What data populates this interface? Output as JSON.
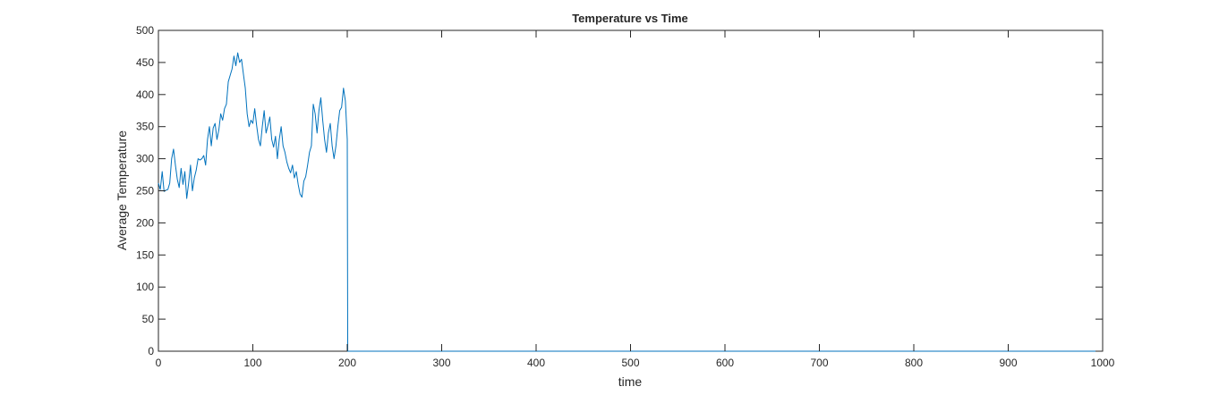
{
  "chart_data": {
    "type": "line",
    "title": "Temperature vs Time",
    "xlabel": "time",
    "ylabel": "Average Temperature",
    "xlim": [
      0,
      1000
    ],
    "ylim": [
      0,
      500
    ],
    "xticks": [
      0,
      100,
      200,
      300,
      400,
      500,
      600,
      700,
      800,
      900,
      1000
    ],
    "yticks": [
      0,
      50,
      100,
      150,
      200,
      250,
      300,
      350,
      400,
      450,
      500
    ],
    "grid": false,
    "legend": "none",
    "series": [
      {
        "color": "#0072bd",
        "x": [
          0,
          2,
          4,
          6,
          8,
          10,
          12,
          14,
          16,
          18,
          20,
          22,
          24,
          26,
          28,
          30,
          32,
          34,
          36,
          38,
          40,
          42,
          44,
          46,
          48,
          50,
          52,
          54,
          56,
          58,
          60,
          62,
          64,
          66,
          68,
          70,
          72,
          74,
          76,
          78,
          80,
          82,
          84,
          86,
          88,
          90,
          92,
          94,
          96,
          98,
          100,
          102,
          104,
          106,
          108,
          110,
          112,
          114,
          116,
          118,
          120,
          122,
          124,
          126,
          128,
          130,
          132,
          134,
          136,
          138,
          140,
          142,
          144,
          146,
          148,
          150,
          152,
          154,
          156,
          158,
          160,
          162,
          164,
          166,
          168,
          170,
          172,
          174,
          176,
          178,
          180,
          182,
          184,
          186,
          188,
          190,
          192,
          194,
          196,
          198,
          199,
          200,
          200.5,
          201,
          202,
          210,
          300,
          400,
          500,
          600,
          700,
          800,
          900,
          1000
        ],
        "y": [
          262,
          252,
          280,
          249,
          251,
          252,
          262,
          300,
          315,
          290,
          268,
          255,
          285,
          260,
          280,
          238,
          262,
          290,
          250,
          270,
          282,
          300,
          298,
          300,
          305,
          290,
          330,
          350,
          320,
          348,
          355,
          330,
          345,
          370,
          360,
          378,
          385,
          420,
          430,
          440,
          460,
          445,
          465,
          450,
          455,
          432,
          410,
          370,
          350,
          360,
          355,
          378,
          352,
          330,
          320,
          350,
          375,
          340,
          352,
          365,
          330,
          318,
          335,
          300,
          330,
          350,
          320,
          310,
          295,
          285,
          278,
          290,
          270,
          280,
          260,
          245,
          240,
          265,
          272,
          290,
          310,
          320,
          385,
          370,
          340,
          375,
          395,
          360,
          330,
          310,
          340,
          355,
          320,
          300,
          320,
          350,
          375,
          380,
          410,
          390,
          360,
          330,
          0,
          0,
          0,
          0,
          0,
          0,
          0,
          0,
          0,
          0,
          0,
          0
        ]
      }
    ]
  }
}
